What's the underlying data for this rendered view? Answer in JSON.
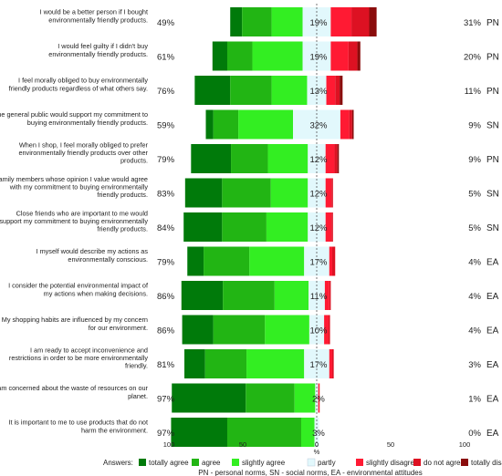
{
  "chart_data": {
    "type": "bar",
    "orientation": "horizontal-diverging",
    "xlabel": "%",
    "xticks": [
      "100",
      "50",
      "0",
      "50",
      "100"
    ],
    "xlim": [
      -100,
      100
    ],
    "categories": [
      "I would be a better person if I bought environmentally friendly products.",
      "I would feel guilty if I didn't buy environmentally friendly products.",
      "I feel morally obliged to buy environmentally friendly products regardless of what others say.",
      "The general public would support my commitment to buying environmentally friendly products.",
      "When I shop, I feel morally obliged to prefer environmentally friendly products over other products.",
      "Family members whose opinion I value would agree with my commitment to buying environmentally friendly products.",
      "Close friends who are important to me would support my commitment to buying environmentally friendly products.",
      "I myself would describe my actions as environmentally conscious.",
      "I consider the potential environmental impact of my actions when making decisions.",
      "My shopping habits are influenced by my concern for our environment.",
      "I am ready to accept inconvenience and restrictions in order to be more environmentally friendly.",
      "I am concerned about the waste of resources on our planet.",
      "It is important to me to use products that do not harm the environment."
    ],
    "agree_pct": [
      "49%",
      "61%",
      "76%",
      "59%",
      "79%",
      "83%",
      "84%",
      "79%",
      "86%",
      "86%",
      "81%",
      "97%",
      "97%"
    ],
    "neutral_pct": [
      "19%",
      "19%",
      "13%",
      "32%",
      "12%",
      "12%",
      "12%",
      "17%",
      "11%",
      "10%",
      "17%",
      "2%",
      "3%"
    ],
    "disagree_pct": [
      "31%",
      "20%",
      "11%",
      "9%",
      "9%",
      "5%",
      "5%",
      "4%",
      "4%",
      "4%",
      "3%",
      "1%",
      "0%"
    ],
    "codes": [
      "PN",
      "PN",
      "PN",
      "SN",
      "PN",
      "SN",
      "SN",
      "EA",
      "EA",
      "EA",
      "EA",
      "EA",
      "EA"
    ],
    "series": [
      {
        "name": "totally agree",
        "color": "#007a0a",
        "values": [
          8,
          10,
          24,
          5,
          27,
          25,
          26,
          11,
          28,
          21,
          14,
          50,
          38
        ]
      },
      {
        "name": "agree",
        "color": "#22b514",
        "values": [
          20,
          17,
          28,
          17,
          25,
          33,
          30,
          31,
          35,
          35,
          28,
          33,
          50
        ]
      },
      {
        "name": "slightly agree",
        "color": "#33ee22",
        "values": [
          21,
          34,
          24,
          37,
          27,
          25,
          28,
          37,
          23,
          30,
          39,
          14,
          9
        ]
      },
      {
        "name": "partly",
        "color": "#e2f8fc",
        "values": [
          19,
          19,
          13,
          32,
          12,
          12,
          12,
          17,
          11,
          10,
          17,
          2,
          3
        ]
      },
      {
        "name": "slightly disagree",
        "color": "#ff1a33",
        "values": [
          14,
          12,
          6,
          6,
          6,
          4,
          4,
          2,
          3,
          3,
          2,
          1,
          0
        ]
      },
      {
        "name": "do not agree",
        "color": "#dd1122",
        "values": [
          12,
          6,
          3,
          2,
          2,
          1,
          1,
          2,
          1,
          1,
          1,
          0,
          0
        ]
      },
      {
        "name": "totally disagree",
        "color": "#8a0c0c",
        "values": [
          5,
          2,
          2,
          1,
          1,
          0,
          0,
          0,
          0,
          0,
          0,
          0,
          0
        ]
      }
    ],
    "legend_title": "Answers:",
    "legend_position": "bottom",
    "footnote": "PN - personal norms, SN - social norms, EA - environmental attitudes"
  }
}
